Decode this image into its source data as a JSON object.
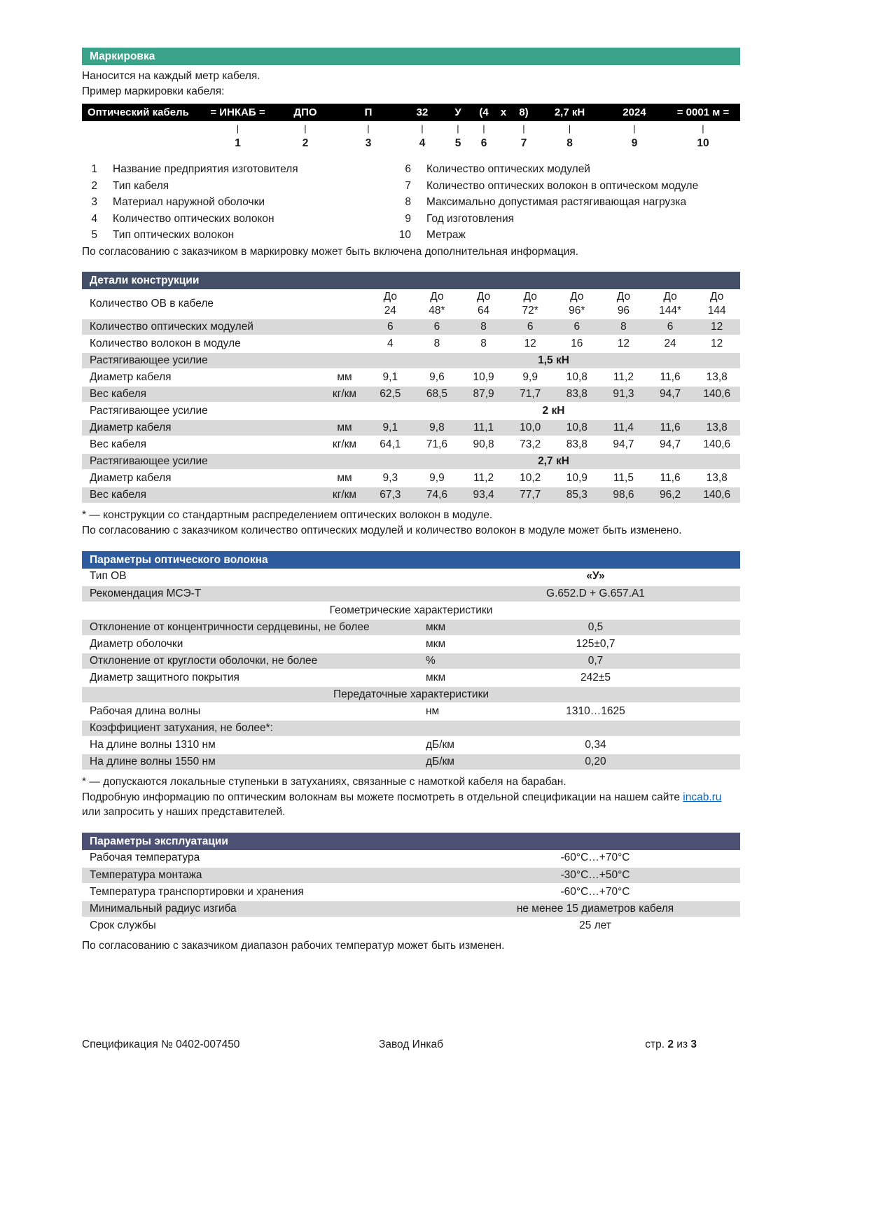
{
  "colors": {
    "green": "#3AA38A",
    "navy": "#424F66",
    "blue": "#2E5C9E",
    "slate": "#4D5275",
    "row_gray": "#D9D9D9",
    "bar_black": "#000000",
    "link_blue": "#0563C1"
  },
  "marking": {
    "title": "Маркировка",
    "intro1": "Наносится на каждый метр кабеля.",
    "intro2": "Пример маркировки кабеля:",
    "bar_cells": [
      {
        "label": "Оптический кабель",
        "num": ""
      },
      {
        "label": "= ИНКАБ =",
        "num": "1"
      },
      {
        "label": "ДПО",
        "num": "2"
      },
      {
        "label": "П",
        "num": "3"
      },
      {
        "label": "32",
        "num": "4"
      },
      {
        "label": "У",
        "num": "5"
      },
      {
        "label": "(4",
        "num": "6"
      },
      {
        "label": "х",
        "num": ""
      },
      {
        "label": "8)",
        "num": "7"
      },
      {
        "label": "2,7 кН",
        "num": "8"
      },
      {
        "label": "2024",
        "num": "9"
      },
      {
        "label": "= 0001 м =",
        "num": "10"
      }
    ],
    "legend_left": [
      {
        "num": "1",
        "text": "Название предприятия изготовителя"
      },
      {
        "num": "2",
        "text": "Тип кабеля"
      },
      {
        "num": "3",
        "text": "Материал наружной оболочки"
      },
      {
        "num": "4",
        "text": "Количество оптических волокон"
      },
      {
        "num": "5",
        "text": "Тип оптических волокон"
      }
    ],
    "legend_right": [
      {
        "num": "6",
        "text": "Количество оптических модулей"
      },
      {
        "num": "7",
        "text": "Количество оптических волокон в оптическом модуле"
      },
      {
        "num": "8",
        "text": "Максимально допустимая растягивающая нагрузка"
      },
      {
        "num": "9",
        "text": "Год изготовления"
      },
      {
        "num": "10",
        "text": "Метраж"
      }
    ],
    "note": "По согласованию с заказчиком в маркировку может быть включена дополнительная информация."
  },
  "construction": {
    "title": "Детали конструкции",
    "first_row_label": "Количество ОВ в кабеле",
    "col_headers": [
      [
        "До",
        "24"
      ],
      [
        "До",
        "48*"
      ],
      [
        "До",
        "64"
      ],
      [
        "До",
        "72*"
      ],
      [
        "До",
        "96*"
      ],
      [
        "До",
        "96"
      ],
      [
        "До",
        "144*"
      ],
      [
        "До",
        "144"
      ]
    ],
    "rows": [
      {
        "type": "data",
        "label": "Количество оптических модулей",
        "unit": "",
        "values": [
          "6",
          "6",
          "8",
          "6",
          "6",
          "8",
          "6",
          "12"
        ]
      },
      {
        "type": "data",
        "label": "Количество волокон в модуле",
        "unit": "",
        "values": [
          "4",
          "8",
          "8",
          "12",
          "16",
          "12",
          "24",
          "12"
        ]
      },
      {
        "type": "span",
        "label": "Растягивающее усилие",
        "value": "1,5 кН"
      },
      {
        "type": "data",
        "label": "Диаметр кабеля",
        "unit": "мм",
        "values": [
          "9,1",
          "9,6",
          "10,9",
          "9,9",
          "10,8",
          "11,2",
          "11,6",
          "13,8"
        ]
      },
      {
        "type": "data",
        "label": "Вес кабеля",
        "unit": "кг/км",
        "values": [
          "62,5",
          "68,5",
          "87,9",
          "71,7",
          "83,8",
          "91,3",
          "94,7",
          "140,6"
        ]
      },
      {
        "type": "span",
        "label": "Растягивающее усилие",
        "value": "2 кН"
      },
      {
        "type": "data",
        "label": "Диаметр кабеля",
        "unit": "мм",
        "values": [
          "9,1",
          "9,8",
          "11,1",
          "10,0",
          "10,8",
          "11,4",
          "11,6",
          "13,8"
        ]
      },
      {
        "type": "data",
        "label": "Вес кабеля",
        "unit": "кг/км",
        "values": [
          "64,1",
          "71,6",
          "90,8",
          "73,2",
          "83,8",
          "94,7",
          "94,7",
          "140,6"
        ]
      },
      {
        "type": "span",
        "label": "Растягивающее усилие",
        "value": "2,7 кН"
      },
      {
        "type": "data",
        "label": "Диаметр кабеля",
        "unit": "мм",
        "values": [
          "9,3",
          "9,9",
          "11,2",
          "10,2",
          "10,9",
          "11,5",
          "11,6",
          "13,8"
        ]
      },
      {
        "type": "data",
        "label": "Вес кабеля",
        "unit": "кг/км",
        "values": [
          "67,3",
          "74,6",
          "93,4",
          "77,7",
          "85,3",
          "98,6",
          "96,2",
          "140,6"
        ]
      }
    ],
    "footnote1": "* — конструкции со стандартным распределением оптических волокон в модуле.",
    "footnote2": "По согласованию с заказчиком количество оптических модулей и количество волокон в модуле может быть изменено."
  },
  "fiber": {
    "title": "Параметры оптического волокна",
    "rows": [
      {
        "type": "kv",
        "label": "Тип ОВ",
        "unit": "",
        "value": "«У»",
        "bold": true
      },
      {
        "type": "kv",
        "label": "Рекомендация МСЭ-Т",
        "unit": "",
        "value": "G.652.D + G.657.A1"
      },
      {
        "type": "section",
        "label": "Геометрические характеристики"
      },
      {
        "type": "kv",
        "label": "Отклонение от концентричности сердцевины, не более",
        "unit": "мкм",
        "value": "0,5"
      },
      {
        "type": "kv",
        "label": "Диаметр оболочки",
        "unit": "мкм",
        "value": "125±0,7"
      },
      {
        "type": "kv",
        "label": "Отклонение от круглости оболочки, не более",
        "unit": "%",
        "value": "0,7"
      },
      {
        "type": "kv",
        "label": "Диаметр защитного покрытия",
        "unit": "мкм",
        "value": "242±5"
      },
      {
        "type": "section",
        "label": "Передаточные характеристики"
      },
      {
        "type": "kv",
        "label": "Рабочая длина волны",
        "unit": "нм",
        "value": "1310…1625"
      },
      {
        "type": "kv",
        "label": "Коэффициент затухания, не более*:",
        "unit": "",
        "value": ""
      },
      {
        "type": "kv",
        "label": "На длине волны 1310 нм",
        "unit": "дБ/км",
        "value": "0,34"
      },
      {
        "type": "kv",
        "label": "На длине волны 1550 нм",
        "unit": "дБ/км",
        "value": "0,20"
      }
    ],
    "footnote1": "* — допускаются локальные ступеньки в затуханиях, связанные с намоткой кабеля на барабан.",
    "footnote2_pre": "Подробную информацию по оптическим волокнам вы можете посмотреть в отдельной спецификации на нашем сайте ",
    "footnote2_link": "incab.ru",
    "footnote2_post": " или запросить у наших представителей."
  },
  "operation": {
    "title": "Параметры эксплуатации",
    "rows": [
      {
        "label": "Рабочая температура",
        "value": "-60°C…+70°C"
      },
      {
        "label": "Температура монтажа",
        "value": "-30°C…+50°C"
      },
      {
        "label": "Температура транспортировки и хранения",
        "value": "-60°C…+70°C"
      },
      {
        "label": "Минимальный радиус изгиба",
        "value": "не менее 15 диаметров кабеля"
      },
      {
        "label": "Срок службы",
        "value": "25 лет"
      }
    ],
    "note": "По согласованию с заказчиком диапазон рабочих температур может быть изменен."
  },
  "footer": {
    "left": "Спецификация № 0402-007450",
    "center": "Завод Инкаб",
    "page_label": "стр. ",
    "page_num": "2",
    "of_label": " из ",
    "page_total": "3"
  }
}
